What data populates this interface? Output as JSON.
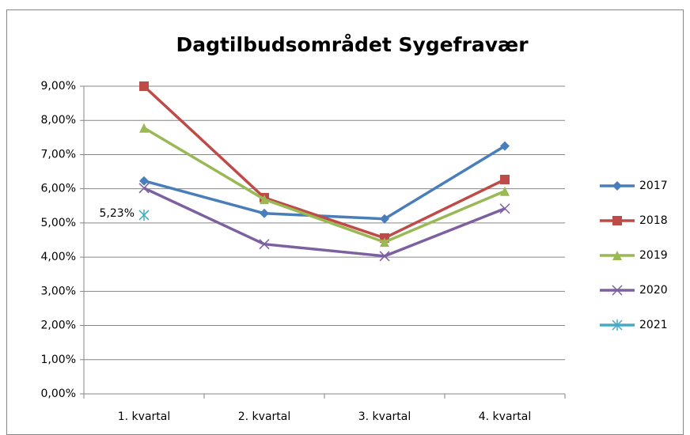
{
  "chart_data": {
    "type": "line",
    "title": "Dagtilbudsområdet  Sygefravær",
    "categories": [
      "1. kvartal",
      "2. kvartal",
      "3. kvartal",
      "4. kvartal"
    ],
    "series": [
      {
        "name": "2017",
        "color": "#4a7ebb",
        "marker": "diamond",
        "values": [
          6.23,
          5.28,
          5.12,
          7.25
        ]
      },
      {
        "name": "2018",
        "color": "#be4b48",
        "marker": "square",
        "values": [
          9.0,
          5.74,
          4.56,
          6.27
        ]
      },
      {
        "name": "2019",
        "color": "#98b954",
        "marker": "triangle",
        "values": [
          7.78,
          5.69,
          4.44,
          5.93
        ]
      },
      {
        "name": "2020",
        "color": "#7d60a0",
        "marker": "x",
        "values": [
          6.02,
          4.38,
          4.03,
          5.42
        ]
      },
      {
        "name": "2021",
        "color": "#46aac5",
        "marker": "asterisk",
        "values": [
          5.23,
          null,
          null,
          null
        ],
        "value_labels": [
          "5,23%",
          null,
          null,
          null
        ]
      }
    ],
    "ylim": [
      0,
      9
    ],
    "yticks": [
      {
        "value": 0,
        "label": "0,00%"
      },
      {
        "value": 1,
        "label": "1,00%"
      },
      {
        "value": 2,
        "label": "2,00%"
      },
      {
        "value": 3,
        "label": "3,00%"
      },
      {
        "value": 4,
        "label": "4,00%"
      },
      {
        "value": 5,
        "label": "5,00%"
      },
      {
        "value": 6,
        "label": "6,00%"
      },
      {
        "value": 7,
        "label": "7,00%"
      },
      {
        "value": 8,
        "label": "8,00%"
      },
      {
        "value": 9,
        "label": "9,00%"
      }
    ],
    "grid": true,
    "legend": "right"
  }
}
